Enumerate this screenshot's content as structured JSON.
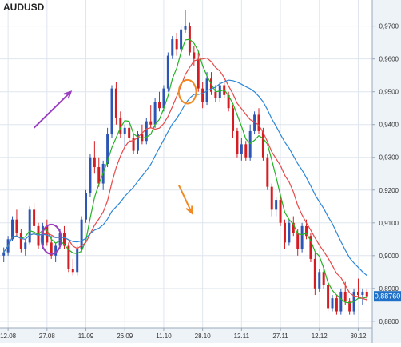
{
  "chart_data": {
    "type": "candlestick",
    "title": "AUDUSD",
    "x_tick_labels": [
      "12.08",
      "27.08",
      "11.09",
      "26.09",
      "11.10",
      "28.10",
      "12.11",
      "27.11",
      "12.12",
      "30.12"
    ],
    "y_tick_labels": [
      "0,9700",
      "0,9600",
      "0,9500",
      "0,9400",
      "0,9300",
      "0,9200",
      "0,9100",
      "0,9000",
      "0,8900",
      "0,8800"
    ],
    "y_ticks": [
      0.97,
      0.96,
      0.95,
      0.94,
      0.93,
      0.92,
      0.91,
      0.9,
      0.89,
      0.88
    ],
    "ylim": [
      0.8785,
      0.9765
    ],
    "last_price": "0,88760",
    "last_price_value": 0.8876,
    "grid": true,
    "colors": {
      "up": "#2d55b5",
      "down": "#d41d22",
      "ma_fast": "#22b322",
      "ma_mid": "#e84848",
      "ma_slow": "#2b87d9",
      "grid": "#dfe6ee",
      "axis_bg": "#eef3f8",
      "last_price_bg": "#1f70c8",
      "annotation_purple": "#9a3fbf",
      "annotation_orange": "#f08a24",
      "text": "#333333"
    },
    "candles": [
      [
        0.9,
        0.9025,
        0.898,
        0.901
      ],
      [
        0.901,
        0.906,
        0.9,
        0.905
      ],
      [
        0.905,
        0.912,
        0.9045,
        0.911
      ],
      [
        0.911,
        0.914,
        0.906,
        0.907
      ],
      [
        0.907,
        0.908,
        0.901,
        0.902
      ],
      [
        0.902,
        0.905,
        0.9,
        0.904
      ],
      [
        0.904,
        0.915,
        0.9035,
        0.914
      ],
      [
        0.914,
        0.916,
        0.908,
        0.909
      ],
      [
        0.909,
        0.91,
        0.902,
        0.903
      ],
      [
        0.903,
        0.91,
        0.902,
        0.909
      ],
      [
        0.909,
        0.911,
        0.903,
        0.904
      ],
      [
        0.904,
        0.906,
        0.899,
        0.9
      ],
      [
        0.9,
        0.904,
        0.898,
        0.903
      ],
      [
        0.903,
        0.908,
        0.902,
        0.907
      ],
      [
        0.907,
        0.909,
        0.902,
        0.903
      ],
      [
        0.903,
        0.904,
        0.895,
        0.896
      ],
      [
        0.896,
        0.899,
        0.894,
        0.895
      ],
      [
        0.895,
        0.903,
        0.894,
        0.902
      ],
      [
        0.902,
        0.912,
        0.901,
        0.911
      ],
      [
        0.911,
        0.92,
        0.91,
        0.919
      ],
      [
        0.919,
        0.931,
        0.918,
        0.93
      ],
      [
        0.93,
        0.935,
        0.925,
        0.927
      ],
      [
        0.927,
        0.93,
        0.921,
        0.922
      ],
      [
        0.922,
        0.929,
        0.92,
        0.928
      ],
      [
        0.928,
        0.939,
        0.927,
        0.937
      ],
      [
        0.937,
        0.952,
        0.936,
        0.951
      ],
      [
        0.951,
        0.953,
        0.94,
        0.942
      ],
      [
        0.942,
        0.944,
        0.936,
        0.937
      ],
      [
        0.937,
        0.94,
        0.933,
        0.939
      ],
      [
        0.939,
        0.941,
        0.935,
        0.936
      ],
      [
        0.936,
        0.937,
        0.931,
        0.932
      ],
      [
        0.932,
        0.938,
        0.931,
        0.937
      ],
      [
        0.937,
        0.94,
        0.934,
        0.935
      ],
      [
        0.935,
        0.942,
        0.934,
        0.941
      ],
      [
        0.941,
        0.946,
        0.939,
        0.94
      ],
      [
        0.94,
        0.948,
        0.939,
        0.947
      ],
      [
        0.947,
        0.95,
        0.944,
        0.945
      ],
      [
        0.945,
        0.952,
        0.944,
        0.951
      ],
      [
        0.951,
        0.962,
        0.95,
        0.961
      ],
      [
        0.961,
        0.967,
        0.96,
        0.966
      ],
      [
        0.966,
        0.968,
        0.961,
        0.963
      ],
      [
        0.963,
        0.97,
        0.962,
        0.969
      ],
      [
        0.969,
        0.975,
        0.968,
        0.97
      ],
      [
        0.97,
        0.971,
        0.961,
        0.962
      ],
      [
        0.962,
        0.964,
        0.958,
        0.96
      ],
      [
        0.96,
        0.962,
        0.95,
        0.951
      ],
      [
        0.951,
        0.953,
        0.945,
        0.947
      ],
      [
        0.947,
        0.956,
        0.946,
        0.954
      ],
      [
        0.954,
        0.956,
        0.949,
        0.95
      ],
      [
        0.95,
        0.952,
        0.947,
        0.948
      ],
      [
        0.948,
        0.953,
        0.947,
        0.952
      ],
      [
        0.952,
        0.954,
        0.948,
        0.949
      ],
      [
        0.949,
        0.95,
        0.944,
        0.945
      ],
      [
        0.945,
        0.946,
        0.936,
        0.938
      ],
      [
        0.938,
        0.939,
        0.93,
        0.931
      ],
      [
        0.931,
        0.936,
        0.929,
        0.934
      ],
      [
        0.934,
        0.935,
        0.929,
        0.93
      ],
      [
        0.93,
        0.94,
        0.929,
        0.938
      ],
      [
        0.938,
        0.944,
        0.937,
        0.943
      ],
      [
        0.943,
        0.945,
        0.937,
        0.938
      ],
      [
        0.938,
        0.939,
        0.929,
        0.93
      ],
      [
        0.93,
        0.931,
        0.92,
        0.921
      ],
      [
        0.921,
        0.922,
        0.912,
        0.914
      ],
      [
        0.914,
        0.918,
        0.912,
        0.917
      ],
      [
        0.917,
        0.918,
        0.909,
        0.91
      ],
      [
        0.91,
        0.911,
        0.902,
        0.904
      ],
      [
        0.904,
        0.911,
        0.903,
        0.91
      ],
      [
        0.91,
        0.912,
        0.906,
        0.907
      ],
      [
        0.907,
        0.908,
        0.9,
        0.902
      ],
      [
        0.902,
        0.91,
        0.901,
        0.909
      ],
      [
        0.909,
        0.911,
        0.905,
        0.906
      ],
      [
        0.906,
        0.907,
        0.898,
        0.899
      ],
      [
        0.899,
        0.901,
        0.888,
        0.89
      ],
      [
        0.89,
        0.896,
        0.889,
        0.895
      ],
      [
        0.895,
        0.897,
        0.89,
        0.891
      ],
      [
        0.891,
        0.892,
        0.883,
        0.884
      ],
      [
        0.884,
        0.888,
        0.883,
        0.887
      ],
      [
        0.887,
        0.888,
        0.882,
        0.883
      ],
      [
        0.883,
        0.89,
        0.882,
        0.889
      ],
      [
        0.889,
        0.892,
        0.885,
        0.886
      ],
      [
        0.886,
        0.887,
        0.882,
        0.883
      ],
      [
        0.883,
        0.89,
        0.882,
        0.889
      ],
      [
        0.889,
        0.893,
        0.887,
        0.888
      ],
      [
        0.888,
        0.89,
        0.885,
        0.889
      ],
      [
        0.889,
        0.89,
        0.886,
        0.8876
      ]
    ],
    "annotations": [
      {
        "kind": "arrow",
        "color": "purple",
        "from": [
          7,
          0.939
        ],
        "to": [
          15.5,
          0.95
        ]
      },
      {
        "kind": "ellipse",
        "color": "purple",
        "center": [
          11,
          0.905
        ],
        "radii": [
          2.3,
          0.0045
        ]
      },
      {
        "kind": "ellipse",
        "color": "orange",
        "center": [
          42.5,
          0.95
        ],
        "radii": [
          2.0,
          0.0036
        ]
      },
      {
        "kind": "arrow",
        "color": "orange",
        "from": [
          40.5,
          0.9215
        ],
        "to": [
          43.5,
          0.913
        ]
      }
    ],
    "moving_averages": [
      {
        "role": "fast",
        "period": 5
      },
      {
        "role": "mid",
        "period": 10
      },
      {
        "role": "slow",
        "period": 20
      }
    ]
  }
}
